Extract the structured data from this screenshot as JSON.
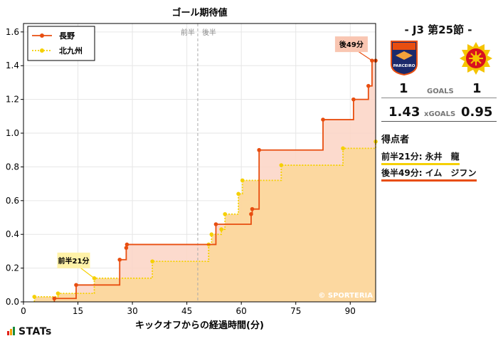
{
  "chart_data": {
    "type": "line",
    "title": "ゴール期待値",
    "xlabel": "キックオフからの経過時間(分)",
    "ylabel": "",
    "xlim": [
      0,
      97
    ],
    "ylim": [
      0,
      1.65
    ],
    "xticks": [
      0,
      15,
      30,
      45,
      60,
      75,
      90
    ],
    "yticks": [
      0.0,
      0.2,
      0.4,
      0.6,
      0.8,
      1.0,
      1.2,
      1.4,
      1.6
    ],
    "grid": true,
    "legend_position": "top-left",
    "halftime_minute": 48,
    "halftime_labels": {
      "first": "前半",
      "second": "後半"
    },
    "watermark": "© SPORTERIA",
    "series": [
      {
        "name": "長野",
        "color": "#e84e10",
        "fill": "#fbd3c4",
        "style": "solid",
        "points": [
          [
            8.5,
            0.02
          ],
          [
            14.5,
            0.1
          ],
          [
            26.5,
            0.25
          ],
          [
            28.3,
            0.32
          ],
          [
            28.5,
            0.34
          ],
          [
            53.0,
            0.46
          ],
          [
            62.7,
            0.52
          ],
          [
            63.0,
            0.55
          ],
          [
            64.9,
            0.9
          ],
          [
            82.5,
            1.08
          ],
          [
            90.9,
            1.2
          ],
          [
            95.0,
            1.28
          ],
          [
            96.0,
            1.43
          ],
          [
            97.0,
            1.43
          ]
        ]
      },
      {
        "name": "北九州",
        "color": "#f5d000",
        "fill": "#fff0b0",
        "style": "dotted",
        "points": [
          [
            3.0,
            0.03
          ],
          [
            9.5,
            0.05
          ],
          [
            19.5,
            0.14
          ],
          [
            35.5,
            0.24
          ],
          [
            51.0,
            0.34
          ],
          [
            51.8,
            0.4
          ],
          [
            54.5,
            0.43
          ],
          [
            55.5,
            0.52
          ],
          [
            59.2,
            0.64
          ],
          [
            60.3,
            0.72
          ],
          [
            71.0,
            0.81
          ],
          [
            88.0,
            0.91
          ],
          [
            97.0,
            0.95
          ]
        ]
      }
    ],
    "annotations": [
      {
        "text": "前半21分",
        "series": "北九州",
        "x": 19.5,
        "y": 0.14
      },
      {
        "text": "後49分",
        "series": "長野",
        "x": 96.0,
        "y": 1.43
      }
    ]
  },
  "sidebar": {
    "matchday": "- J3 第25節 -",
    "home_team_badge_text": "PARCEIRO",
    "home_team_badge_top": "AC NAGANO",
    "home_goals": "1",
    "away_goals": "1",
    "goals_label": "GOALS",
    "home_xg": "1.43",
    "away_xg": "0.95",
    "xg_label": "xGOALS",
    "scorers_title": "得点者",
    "scorers": [
      "前半21分: 永井　龍",
      "後半49分: イム　ジフン"
    ],
    "colors": {
      "home": "#e84e10",
      "away": "#f5d000",
      "home_badge": "#1c2a6b",
      "away_badge": "#d9121f"
    }
  },
  "footer": {
    "brand": "STATs"
  }
}
